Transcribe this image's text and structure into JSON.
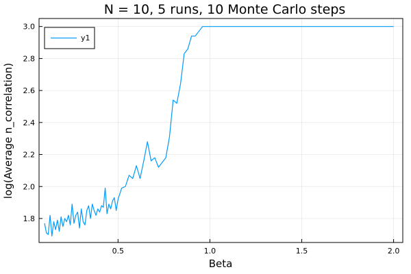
{
  "chart_data": {
    "type": "line",
    "title": "N = 10, 5 runs, 10  Monte Carlo steps",
    "xlabel": "Beta",
    "ylabel": "log(Average n_correlation)",
    "xlim": [
      0.07,
      2.05
    ],
    "ylim": [
      1.65,
      3.05
    ],
    "xticks": [
      0.5,
      1.0,
      1.5,
      2.0
    ],
    "xtick_labels": [
      "0.5",
      "1.0",
      "1.5",
      "2.0"
    ],
    "yticks": [
      1.8,
      2.0,
      2.2,
      2.4,
      2.6,
      2.8,
      3.0
    ],
    "ytick_labels": [
      "1.8",
      "2.0",
      "2.2",
      "2.4",
      "2.6",
      "2.8",
      "3.0"
    ],
    "grid": true,
    "legend_position": "top-left",
    "series": [
      {
        "name": "y1",
        "color": "#009AFA",
        "x": [
          0.1,
          0.11,
          0.12,
          0.13,
          0.14,
          0.15,
          0.16,
          0.17,
          0.18,
          0.19,
          0.2,
          0.21,
          0.22,
          0.23,
          0.24,
          0.25,
          0.26,
          0.27,
          0.28,
          0.29,
          0.3,
          0.31,
          0.32,
          0.33,
          0.34,
          0.35,
          0.36,
          0.37,
          0.38,
          0.39,
          0.4,
          0.41,
          0.42,
          0.43,
          0.44,
          0.45,
          0.46,
          0.47,
          0.48,
          0.49,
          0.5,
          0.52,
          0.54,
          0.56,
          0.58,
          0.6,
          0.62,
          0.64,
          0.66,
          0.68,
          0.7,
          0.72,
          0.74,
          0.76,
          0.78,
          0.8,
          0.82,
          0.84,
          0.86,
          0.88,
          0.9,
          0.92,
          0.94,
          0.96,
          0.98,
          1.0,
          1.1,
          1.2,
          1.3,
          1.4,
          1.5,
          1.6,
          1.7,
          1.8,
          1.9,
          2.0
        ],
        "y": [
          1.77,
          1.71,
          1.7,
          1.82,
          1.69,
          1.78,
          1.73,
          1.79,
          1.72,
          1.81,
          1.75,
          1.8,
          1.78,
          1.82,
          1.76,
          1.89,
          1.77,
          1.82,
          1.84,
          1.74,
          1.86,
          1.78,
          1.76,
          1.85,
          1.88,
          1.8,
          1.89,
          1.85,
          1.82,
          1.86,
          1.84,
          1.88,
          1.87,
          1.99,
          1.83,
          1.89,
          1.86,
          1.91,
          1.93,
          1.85,
          1.92,
          1.99,
          2.0,
          2.07,
          2.05,
          2.13,
          2.05,
          2.16,
          2.28,
          2.16,
          2.18,
          2.12,
          2.15,
          2.18,
          2.31,
          2.54,
          2.52,
          2.64,
          2.83,
          2.86,
          2.94,
          2.94,
          2.97,
          3.0,
          3.0,
          3.0,
          3.0,
          3.0,
          3.0,
          3.0,
          3.0,
          3.0,
          3.0,
          3.0,
          3.0,
          3.0
        ]
      }
    ]
  }
}
